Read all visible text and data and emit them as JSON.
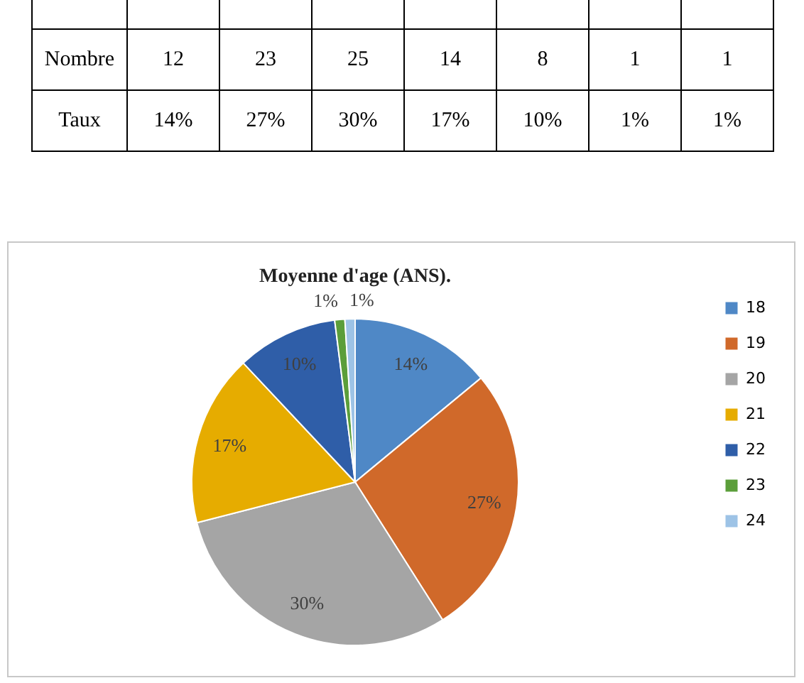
{
  "chart_data": [
    {
      "type": "other",
      "y_categories": [
        "Nombre",
        "Taux"
      ],
      "cell_labels": [
        [
          "12",
          "23",
          "25",
          "14",
          "8",
          "1",
          "1"
        ],
        [
          "14%",
          "27%",
          "30%",
          "17%",
          "10%",
          "1%",
          "1%"
        ]
      ]
    },
    {
      "type": "pie",
      "title": "Moyenne d'age (ANS).",
      "categories": [
        "18",
        "19",
        "20",
        "21",
        "22",
        "23",
        "24"
      ],
      "values": [
        14,
        27,
        30,
        17,
        10,
        1,
        1
      ],
      "value_labels": [
        "14%",
        "27%",
        "30%",
        "17%",
        "10%",
        "1%",
        "1%"
      ],
      "colors": [
        "#4f88c6",
        "#d0692a",
        "#a5a5a5",
        "#e6ac00",
        "#2f5ea8",
        "#5b9e3a",
        "#9dc3e6"
      ],
      "legend": "right"
    }
  ]
}
